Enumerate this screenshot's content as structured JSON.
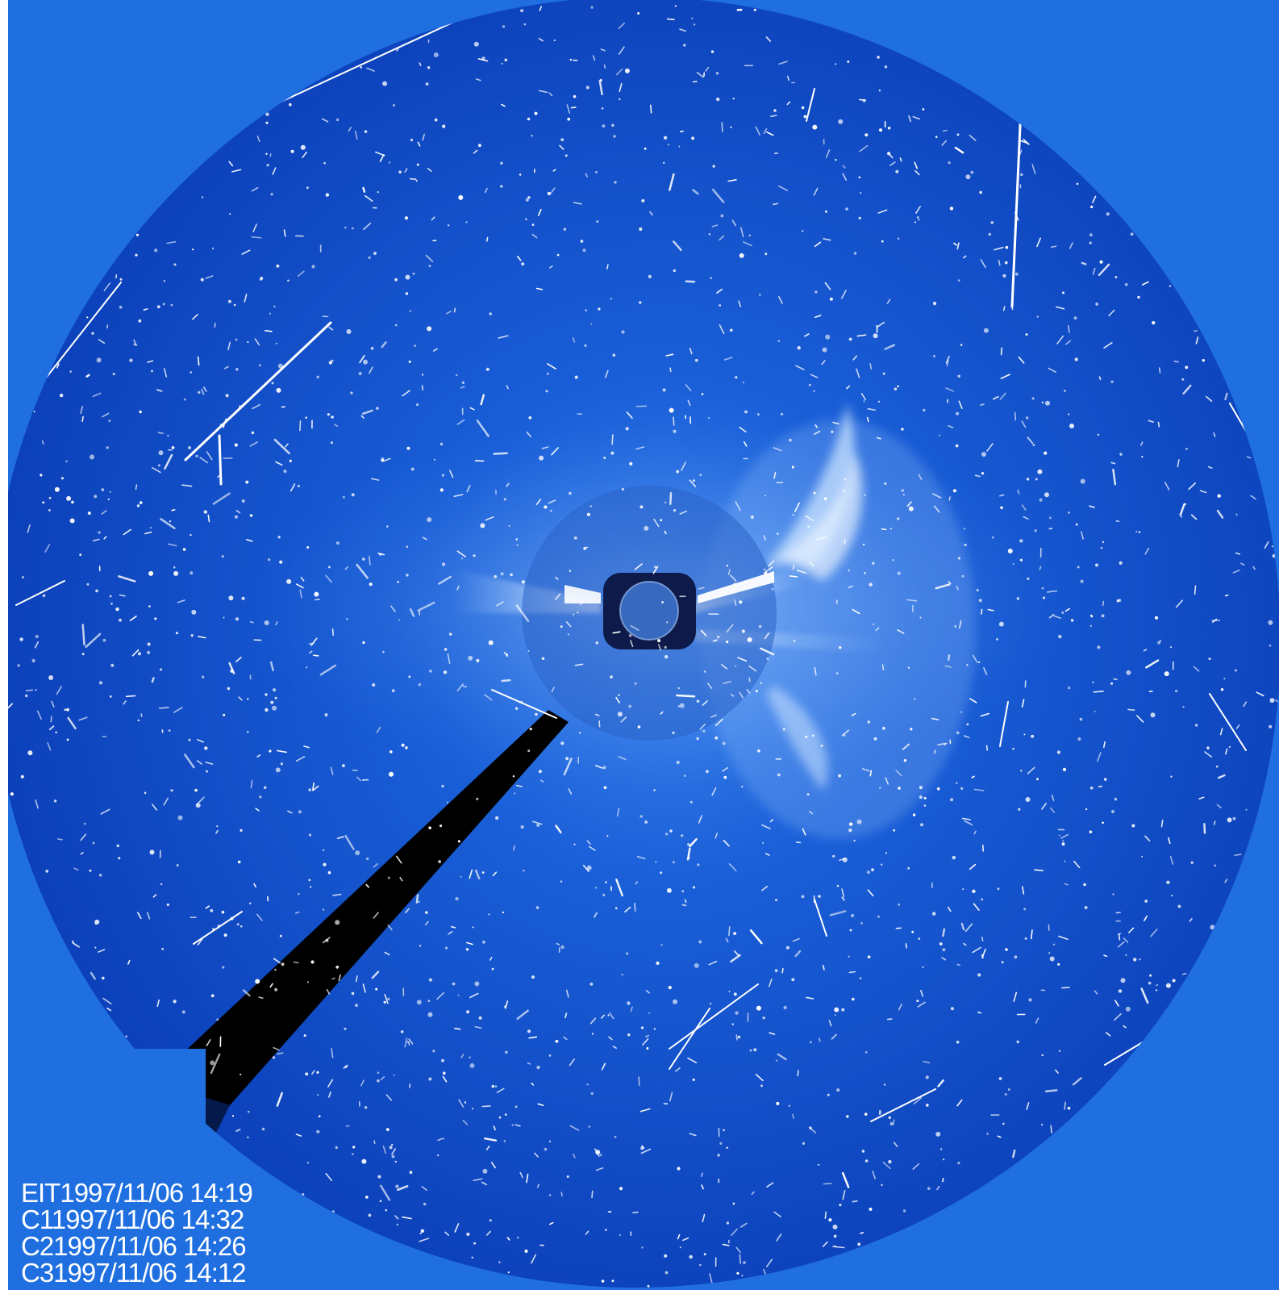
{
  "image": {
    "subject": "coronagraph-composite",
    "colors": {
      "background": "#1f6fe0",
      "field": "#0a47c8",
      "field_edge": "#0a3aa8",
      "occulter": "#12205a",
      "highlight": "#ffffff"
    }
  },
  "timestamps": [
    "EIT1997/11/06 14:19",
    "C11997/11/06 14:32",
    "C21997/11/06 14:26",
    "C31997/11/06 14:12"
  ]
}
